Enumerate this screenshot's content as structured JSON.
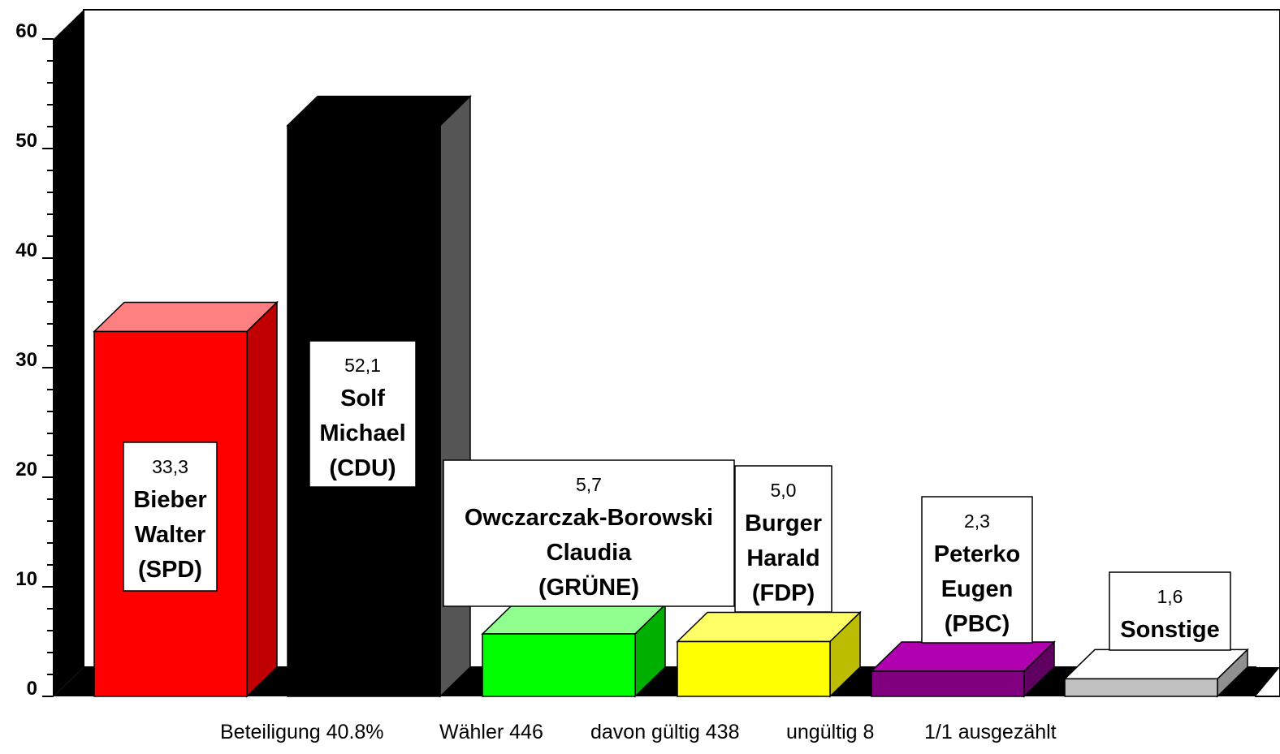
{
  "chart_data": {
    "type": "bar",
    "title": "",
    "xlabel": "",
    "ylabel": "",
    "ylim": [
      0,
      60
    ],
    "yticks": [
      "0",
      "10",
      "20",
      "30",
      "40",
      "50",
      "60"
    ],
    "three_d": true,
    "grid": false,
    "bars": [
      {
        "value": 33.3,
        "value_label": "33,3",
        "name_lines": [
          "Bieber",
          "Walter",
          "(SPD)"
        ],
        "color": "#ff0000",
        "top_color": "#ff8080",
        "side_color": "#c00000"
      },
      {
        "value": 52.1,
        "value_label": "52,1",
        "name_lines": [
          "Solf",
          "Michael",
          "(CDU)"
        ],
        "color": "#000000",
        "top_color": "#000000",
        "side_color": "#555555"
      },
      {
        "value": 5.7,
        "value_label": "5,7",
        "name_lines": [
          "Owczarczak-Borowski",
          "Claudia",
          "(GRÜNE)"
        ],
        "color": "#00ff00",
        "top_color": "#90ff90",
        "side_color": "#00b000"
      },
      {
        "value": 5.0,
        "value_label": "5,0",
        "name_lines": [
          "Burger",
          "Harald",
          "(FDP)"
        ],
        "color": "#ffff00",
        "top_color": "#ffff66",
        "side_color": "#bcbc00"
      },
      {
        "value": 2.3,
        "value_label": "2,3",
        "name_lines": [
          "Peterko",
          "Eugen",
          "(PBC)"
        ],
        "color": "#800080",
        "top_color": "#b000b0",
        "side_color": "#600060"
      },
      {
        "value": 1.6,
        "value_label": "1,6",
        "name_lines": [
          "Sonstige"
        ],
        "color": "#c0c0c0",
        "top_color": "#ffffff",
        "side_color": "#909090"
      }
    ]
  },
  "footer": {
    "turnout": "Beteiligung 40.8%",
    "voters": "Wähler 446",
    "valid": "davon gültig 438",
    "invalid": "ungültig 8",
    "counted": "1/1 ausgezählt"
  }
}
